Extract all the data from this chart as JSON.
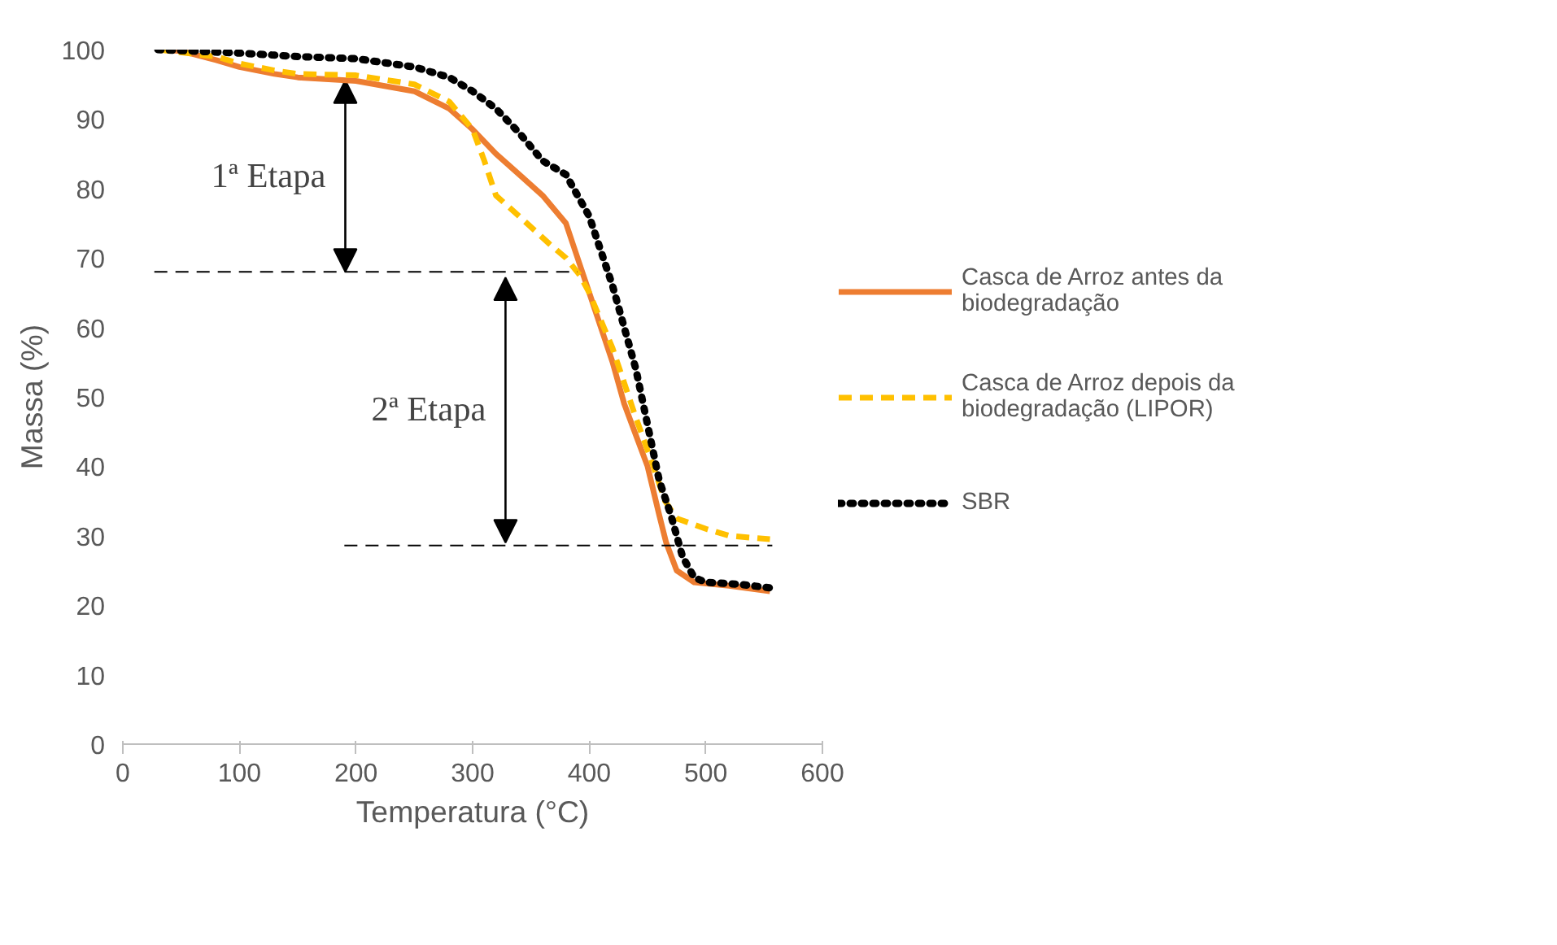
{
  "chart_data": {
    "type": "line",
    "xlabel": "Temperatura (°C)",
    "ylabel": "Massa (%)",
    "xlim": [
      0,
      600
    ],
    "ylim": [
      0,
      100
    ],
    "xticks": [
      0,
      100,
      200,
      300,
      400,
      500,
      600
    ],
    "yticks": [
      0,
      10,
      20,
      30,
      40,
      50,
      60,
      70,
      80,
      90,
      100
    ],
    "grid": false,
    "legend": "right",
    "marker": "none",
    "series": [
      {
        "name": "Casca de Arroz antes da biodegradação",
        "color": "#ed7d31",
        "line_style": "solid",
        "x": [
          30,
          50,
          80,
          100,
          130,
          150,
          200,
          250,
          280,
          300,
          320,
          340,
          360,
          380,
          392,
          400,
          410,
          420,
          430,
          440,
          450,
          460,
          466,
          475,
          490,
          520,
          555
        ],
        "values": [
          100,
          99.8,
          98.5,
          97.5,
          96.5,
          96,
          95.5,
          94,
          91.5,
          88.5,
          85,
          82,
          79,
          75,
          69,
          65,
          60,
          55,
          49,
          44.5,
          40,
          33,
          29,
          25,
          23.3,
          22.8,
          22
        ]
      },
      {
        "name": "Casca de Arroz depois da biodegradação (LIPOR)",
        "color": "#ffc000",
        "line_style": "dashed",
        "x": [
          30,
          80,
          100,
          130,
          150,
          200,
          250,
          280,
          300,
          310,
          320,
          340,
          366,
          380,
          392,
          400,
          420,
          440,
          455,
          465,
          475,
          500,
          520,
          555
        ],
        "values": [
          100,
          99,
          98,
          97,
          96.5,
          96.3,
          95,
          92.5,
          88.5,
          84,
          79,
          76,
          72,
          70,
          67.5,
          65,
          57,
          47,
          40,
          35,
          32.5,
          31,
          30,
          29.5
        ]
      },
      {
        "name": "SBR",
        "color": "#000000",
        "line_style": "dotted",
        "x": [
          30,
          100,
          150,
          200,
          250,
          280,
          300,
          320,
          340,
          360,
          380,
          400,
          420,
          440,
          450,
          460,
          470,
          480,
          490,
          500,
          530,
          555
        ],
        "values": [
          100,
          99.5,
          99,
          98.7,
          97.5,
          96,
          94,
          91.5,
          88,
          84,
          82,
          76,
          66,
          54,
          46,
          38,
          33,
          27,
          24,
          23.3,
          23,
          22.5
        ]
      },
      {
        "color": "#000000",
        "line_style": "dashed",
        "x": [
          27,
          390
        ],
        "values": [
          68,
          68
        ]
      },
      {
        "color": "#000000",
        "line_style": "dashed",
        "x": [
          190,
          557
        ],
        "values": [
          28.6,
          28.6
        ]
      }
    ],
    "annotations": [
      "1ª Etapa",
      "2ª Etapa"
    ]
  }
}
